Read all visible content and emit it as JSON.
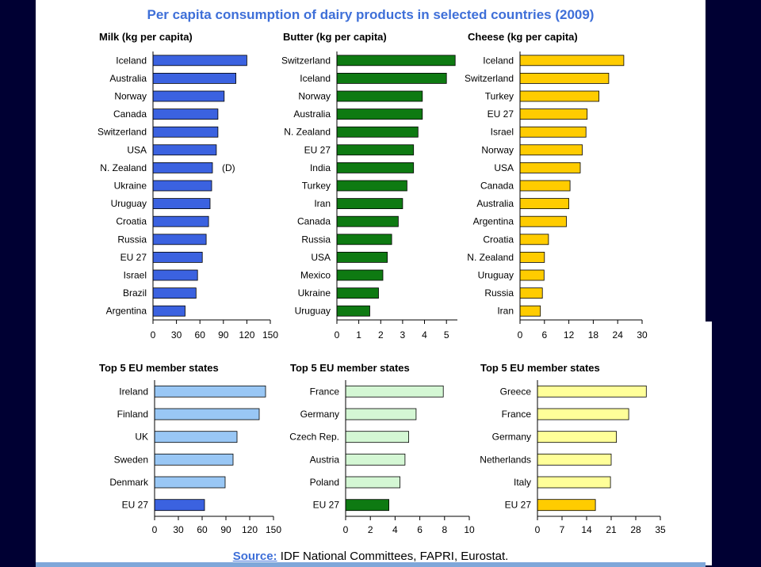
{
  "title": "Per capita consumption of dairy products in selected countries (2009)",
  "source": {
    "label": "Source:",
    "text": "IDF National Committees, FAPRI, Eurostat."
  },
  "colors": {
    "milk": "#3b62e0",
    "butter": "#0e7a12",
    "cheese": "#ffcc00",
    "milk_light": "#99c7f5",
    "butter_light": "#d4f7d4",
    "cheese_light": "#ffff99",
    "title": "#3e6fd8",
    "frame": "#000033"
  },
  "chart_data": [
    {
      "type": "bar",
      "orientation": "horizontal",
      "title": "Milk (kg per capita)",
      "categories": [
        "Iceland",
        "Australia",
        "Norway",
        "Canada",
        "Switzerland",
        "USA",
        "N. Zealand",
        "Ukraine",
        "Uruguay",
        "Croatia",
        "Russia",
        "EU 27",
        "Israel",
        "Brazil",
        "Argentina"
      ],
      "values": [
        120,
        106,
        91,
        83,
        83,
        81,
        76,
        75,
        73,
        71,
        68,
        63,
        57,
        55,
        41
      ],
      "xlim": [
        0,
        150
      ],
      "ticks": [
        0,
        30,
        60,
        90,
        120,
        150
      ],
      "annotations": [
        {
          "category": "N. Zealand",
          "text": "(D)"
        }
      ],
      "color": "#3b62e0"
    },
    {
      "type": "bar",
      "orientation": "horizontal",
      "title": "Butter (kg per capita)",
      "categories": [
        "Switzerland",
        "Iceland",
        "Norway",
        "Australia",
        "N. Zealand",
        "EU 27",
        "India",
        "Turkey",
        "Iran",
        "Canada",
        "Russia",
        "USA",
        "Mexico",
        "Ukraine",
        "Uruguay"
      ],
      "values": [
        5.4,
        5.0,
        3.9,
        3.9,
        3.7,
        3.5,
        3.5,
        3.2,
        3.0,
        2.8,
        2.5,
        2.3,
        2.1,
        1.9,
        1.5
      ],
      "xlim": [
        0,
        5.5
      ],
      "ticks": [
        0,
        1,
        2,
        3,
        4,
        5
      ],
      "color": "#0e7a12"
    },
    {
      "type": "bar",
      "orientation": "horizontal",
      "title": "Cheese (kg per capita)",
      "categories": [
        "Iceland",
        "Switzerland",
        "Turkey",
        "EU 27",
        "Israel",
        "Norway",
        "USA",
        "Canada",
        "Australia",
        "Argentina",
        "Croatia",
        "N. Zealand",
        "Uruguay",
        "Russia",
        "Iran"
      ],
      "values": [
        25.5,
        21.8,
        19.4,
        16.5,
        16.2,
        15.3,
        14.8,
        12.3,
        12.0,
        11.4,
        7.0,
        6.0,
        5.9,
        5.5,
        5.0
      ],
      "xlim": [
        0,
        30
      ],
      "ticks": [
        0,
        6,
        12,
        18,
        24,
        30
      ],
      "color": "#ffcc00"
    },
    {
      "type": "bar",
      "orientation": "horizontal",
      "title": "Top 5 EU member states",
      "categories": [
        "Ireland",
        "Finland",
        "UK",
        "Sweden",
        "Denmark",
        "EU 27"
      ],
      "values": [
        140,
        132,
        104,
        99,
        89,
        63
      ],
      "xlim": [
        0,
        150
      ],
      "ticks": [
        0,
        30,
        60,
        90,
        120,
        150
      ],
      "colors": [
        "#99c7f5",
        "#99c7f5",
        "#99c7f5",
        "#99c7f5",
        "#99c7f5",
        "#3b62e0"
      ]
    },
    {
      "type": "bar",
      "orientation": "horizontal",
      "title": "Top 5 EU member states",
      "categories": [
        "France",
        "Germany",
        "Czech Rep.",
        "Austria",
        "Poland",
        "EU 27"
      ],
      "values": [
        7.9,
        5.7,
        5.1,
        4.8,
        4.4,
        3.5
      ],
      "xlim": [
        0,
        10
      ],
      "ticks": [
        0,
        2,
        4,
        6,
        8,
        10
      ],
      "colors": [
        "#d4f7d4",
        "#d4f7d4",
        "#d4f7d4",
        "#d4f7d4",
        "#d4f7d4",
        "#0e7a12"
      ]
    },
    {
      "type": "bar",
      "orientation": "horizontal",
      "title": "Top 5 EU member states",
      "categories": [
        "Greece",
        "France",
        "Germany",
        "Netherlands",
        "Italy",
        "EU 27"
      ],
      "values": [
        31,
        26,
        22.5,
        21,
        20.8,
        16.5
      ],
      "xlim": [
        0,
        35
      ],
      "ticks": [
        0,
        7,
        14,
        21,
        28,
        35
      ],
      "colors": [
        "#ffff99",
        "#ffff99",
        "#ffff99",
        "#ffff99",
        "#ffff99",
        "#ffcc00"
      ]
    }
  ]
}
